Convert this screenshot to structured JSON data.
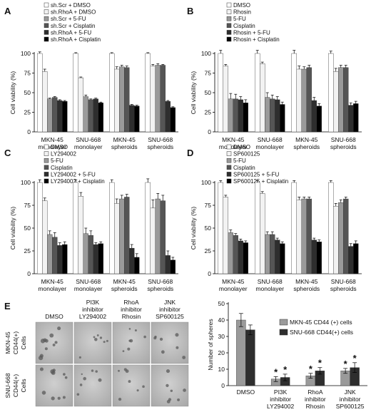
{
  "fills": {
    "lightgray": "#f2f2f2",
    "white": "#ffffff",
    "midgray": "#9a9a9a",
    "dark": "#555555",
    "darker": "#2e2e2e",
    "black": "#000000"
  },
  "chart_data": [
    {
      "panel": "A",
      "type": "bar",
      "ylabel": "Cell viability (%)",
      "ylim": [
        0,
        100
      ],
      "yticks": [
        0,
        25,
        50,
        75,
        100
      ],
      "categories": [
        [
          "MKN-45",
          "monolayer"
        ],
        [
          "SNU-668",
          "monolayer"
        ],
        [
          "MKN-45",
          "spheroids"
        ],
        [
          "SNU-668",
          "spheroids"
        ]
      ],
      "series": [
        {
          "name": "sh.Scr + DMSO",
          "fill": "white",
          "values": [
            100,
            100,
            100,
            100
          ],
          "errors": [
            2,
            1,
            1,
            1
          ]
        },
        {
          "name": "sh.RhoA + DMSO",
          "fill": "lightgray",
          "values": [
            77,
            69,
            80,
            84
          ],
          "errors": [
            3,
            1,
            3,
            2
          ]
        },
        {
          "name": "sh.Scr + 5-FU",
          "fill": "midgray",
          "values": [
            42,
            45,
            83,
            85
          ],
          "errors": [
            1,
            2,
            2,
            2
          ]
        },
        {
          "name": "sh.Scr + Cisplatin",
          "fill": "dark",
          "values": [
            44,
            41,
            82,
            85
          ],
          "errors": [
            1,
            1,
            2,
            1
          ]
        },
        {
          "name": "sh.RhoA + 5-FU",
          "fill": "darker",
          "values": [
            40,
            42,
            34,
            39
          ],
          "errors": [
            1,
            1,
            1,
            1
          ]
        },
        {
          "name": "sh.RhoA + Cisplatin",
          "fill": "black",
          "values": [
            39,
            37,
            33,
            31
          ],
          "errors": [
            1,
            1,
            1,
            1
          ]
        }
      ]
    },
    {
      "panel": "B",
      "type": "bar",
      "ylabel": "Cell viability (%)",
      "ylim": [
        0,
        100
      ],
      "yticks": [
        0,
        25,
        50,
        75,
        100
      ],
      "categories": [
        [
          "MKN-45",
          "monolayer"
        ],
        [
          "SNU-668",
          "monolayer"
        ],
        [
          "MKN-45",
          "spheroids"
        ],
        [
          "SNU-668",
          "spheroids"
        ]
      ],
      "series": [
        {
          "name": "DMSO",
          "fill": "white",
          "values": [
            100,
            100,
            100,
            100
          ],
          "errors": [
            4,
            4,
            4,
            3
          ]
        },
        {
          "name": "Rhosin",
          "fill": "lightgray",
          "values": [
            84,
            87,
            80,
            77
          ],
          "errors": [
            2,
            2,
            4,
            4
          ]
        },
        {
          "name": "5-FU",
          "fill": "midgray",
          "values": [
            42,
            44,
            80,
            82
          ],
          "errors": [
            7,
            6,
            3,
            3
          ]
        },
        {
          "name": "Cisplatin",
          "fill": "dark",
          "values": [
            42,
            42,
            82,
            82
          ],
          "errors": [
            6,
            5,
            3,
            3
          ]
        },
        {
          "name": "Rhosin + 5-FU",
          "fill": "darker",
          "values": [
            41,
            41,
            40,
            34
          ],
          "errors": [
            4,
            4,
            4,
            3
          ]
        },
        {
          "name": "Rhosin + Cisplatin",
          "fill": "black",
          "values": [
            37,
            35,
            33,
            36
          ],
          "errors": [
            4,
            3,
            3,
            3
          ]
        }
      ]
    },
    {
      "panel": "C",
      "type": "bar",
      "ylabel": "Cell viability (%)",
      "ylim": [
        0,
        100
      ],
      "yticks": [
        0,
        25,
        50,
        75,
        100
      ],
      "categories": [
        [
          "MKN-45",
          "monolayer"
        ],
        [
          "SNU-668",
          "monolayer"
        ],
        [
          "MKN-45",
          "spheroids"
        ],
        [
          "SNU-668",
          "spheroids"
        ]
      ],
      "series": [
        {
          "name": "DMSO",
          "fill": "white",
          "values": [
            100,
            100,
            100,
            100
          ],
          "errors": [
            3,
            3,
            3,
            4
          ]
        },
        {
          "name": "LY294002",
          "fill": "lightgray",
          "values": [
            80,
            85,
            77,
            72
          ],
          "errors": [
            3,
            4,
            5,
            9
          ]
        },
        {
          "name": "5-FU",
          "fill": "midgray",
          "values": [
            43,
            44,
            82,
            82
          ],
          "errors": [
            4,
            6,
            4,
            6
          ]
        },
        {
          "name": "Cisplatin",
          "fill": "dark",
          "values": [
            40,
            42,
            84,
            80
          ],
          "errors": [
            5,
            5,
            3,
            6
          ]
        },
        {
          "name": "LY294002 + 5-FU",
          "fill": "darker",
          "values": [
            31,
            32,
            28,
            20
          ],
          "errors": [
            3,
            2,
            4,
            5
          ]
        },
        {
          "name": "LY294002 + Cisplatin",
          "fill": "black",
          "values": [
            32,
            33,
            18,
            15
          ],
          "errors": [
            3,
            2,
            4,
            3
          ]
        }
      ]
    },
    {
      "panel": "D",
      "type": "bar",
      "ylabel": "Cell viability (%)",
      "ylim": [
        0,
        100
      ],
      "yticks": [
        0,
        25,
        50,
        75,
        100
      ],
      "categories": [
        [
          "MKN-45",
          "monolayer"
        ],
        [
          "SNU-668",
          "monolayer"
        ],
        [
          "MKN-45",
          "spheroids"
        ],
        [
          "SNU-668",
          "spheroids"
        ]
      ],
      "series": [
        {
          "name": "DMSO",
          "fill": "white",
          "values": [
            100,
            100,
            100,
            100
          ],
          "errors": [
            2,
            2,
            2,
            2
          ]
        },
        {
          "name": "SP600125",
          "fill": "lightgray",
          "values": [
            84,
            88,
            81,
            74
          ],
          "errors": [
            2,
            2,
            3,
            3
          ]
        },
        {
          "name": "5-FU",
          "fill": "midgray",
          "values": [
            45,
            43,
            82,
            78
          ],
          "errors": [
            3,
            3,
            2,
            3
          ]
        },
        {
          "name": "Cisplatin",
          "fill": "dark",
          "values": [
            42,
            43,
            82,
            82
          ],
          "errors": [
            2,
            3,
            2,
            2
          ]
        },
        {
          "name": "SP600125 + 5-FU",
          "fill": "darker",
          "values": [
            36,
            37,
            37,
            30
          ],
          "errors": [
            2,
            2,
            2,
            3
          ]
        },
        {
          "name": "SP600125 + Cisplatin",
          "fill": "black",
          "values": [
            34,
            33,
            35,
            33
          ],
          "errors": [
            2,
            2,
            2,
            3
          ]
        }
      ]
    },
    {
      "panel": "E",
      "type": "bar",
      "ylabel": "Number of spheres",
      "ylim": [
        0,
        50
      ],
      "yticks": [
        0,
        10,
        20,
        30,
        40,
        50
      ],
      "categories": [
        [
          "DMSO"
        ],
        [
          "PI3K",
          "inhibitor",
          "LY294002"
        ],
        [
          "RhoA",
          "inhibitor",
          "Rhosin"
        ],
        [
          "JNK",
          "inhibitor",
          "SP600125"
        ]
      ],
      "series": [
        {
          "name": "MKN-45 CD44 (+) cells",
          "fill": "midgray",
          "values": [
            40,
            4,
            6,
            9
          ],
          "errors": [
            4,
            1.5,
            1.5,
            1.5
          ]
        },
        {
          "name": "SNU-668 CD44(+) cells",
          "fill": "darker",
          "values": [
            34,
            5,
            9,
            11
          ],
          "errors": [
            3,
            2,
            2,
            3
          ]
        }
      ],
      "significance": "*"
    }
  ],
  "microscopy": {
    "panel": "E",
    "columns": [
      [
        "DMSO"
      ],
      [
        "PI3K",
        "inhibitor",
        "LY294002"
      ],
      [
        "RhoA",
        "inhibitor",
        "Rhosin"
      ],
      [
        "JNK",
        "inhibitor",
        "SP600125"
      ]
    ],
    "rows": [
      [
        "MKN-45",
        "CD44(+)",
        "Cells"
      ],
      [
        "SNU-668",
        "CD44(+)",
        "Cells"
      ]
    ]
  }
}
